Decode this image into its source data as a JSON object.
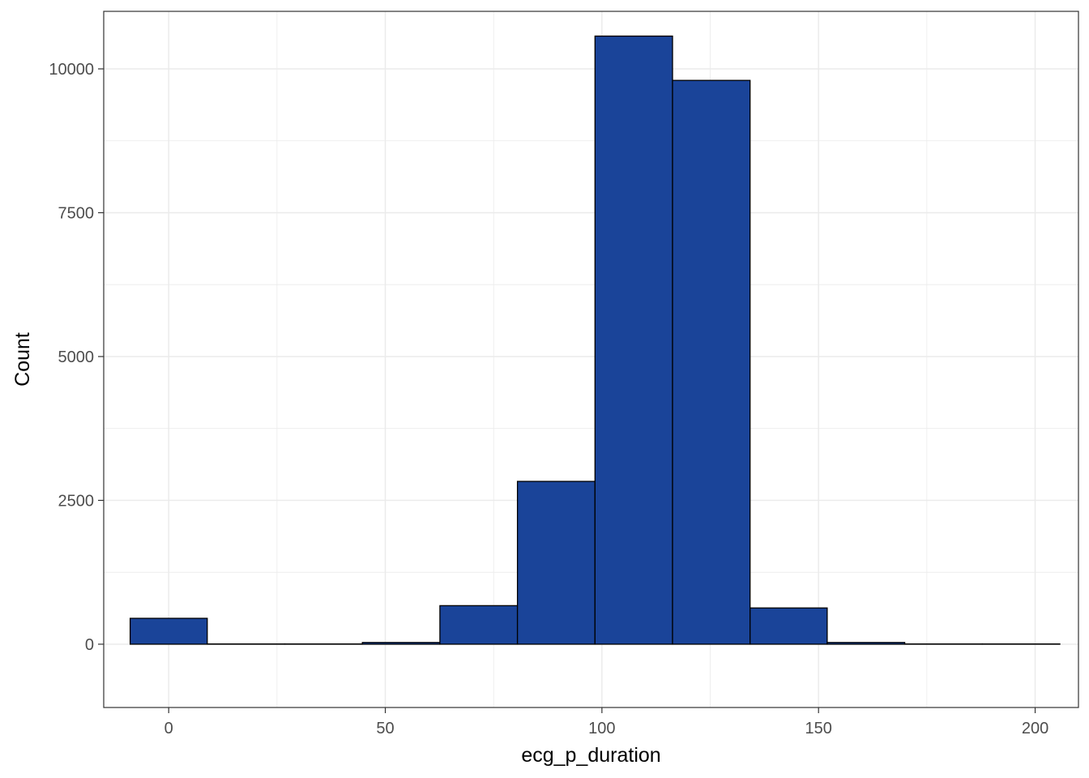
{
  "chart_data": {
    "type": "bar",
    "xlabel": "ecg_p_duration",
    "ylabel": "Count",
    "xlim": [
      -15,
      210
    ],
    "ylim": [
      -1100,
      11000
    ],
    "x_ticks": [
      0,
      50,
      100,
      150,
      200
    ],
    "x_tick_labels": [
      "0",
      "50",
      "100",
      "150",
      "200"
    ],
    "y_ticks": [
      0,
      2500,
      5000,
      7500,
      10000
    ],
    "y_tick_labels": [
      "0",
      "2500",
      "5000",
      "7500",
      "10000"
    ],
    "bins": [
      {
        "x0": -8.9,
        "x1": 8.9,
        "count": 450
      },
      {
        "x0": 8.9,
        "x1": 26.8,
        "count": 5
      },
      {
        "x0": 26.8,
        "x1": 44.7,
        "count": 5
      },
      {
        "x0": 44.7,
        "x1": 62.6,
        "count": 30
      },
      {
        "x0": 62.6,
        "x1": 80.5,
        "count": 670
      },
      {
        "x0": 80.5,
        "x1": 98.4,
        "count": 2830
      },
      {
        "x0": 98.4,
        "x1": 116.3,
        "count": 10570
      },
      {
        "x0": 116.3,
        "x1": 134.2,
        "count": 9800
      },
      {
        "x0": 134.2,
        "x1": 152.0,
        "count": 630
      },
      {
        "x0": 152.0,
        "x1": 169.9,
        "count": 30
      },
      {
        "x0": 169.9,
        "x1": 187.8,
        "count": 5
      },
      {
        "x0": 187.8,
        "x1": 205.7,
        "count": 5
      }
    ],
    "grid": true,
    "legend": "none",
    "colors": {
      "bar_fill": "#1a4499",
      "bar_stroke": "#000000",
      "grid": "#ebebeb",
      "panel_border": "#333333"
    }
  }
}
